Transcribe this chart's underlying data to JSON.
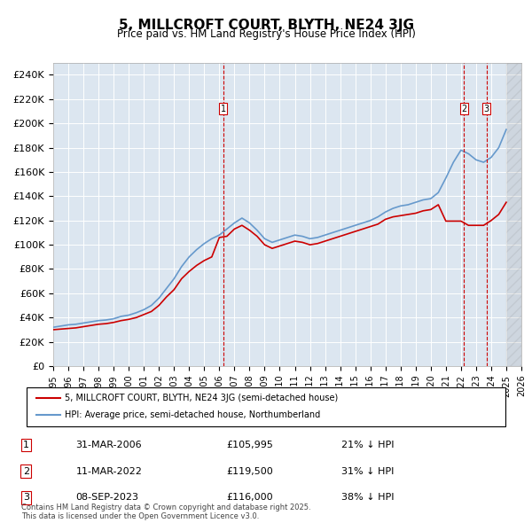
{
  "title": "5, MILLCROFT COURT, BLYTH, NE24 3JG",
  "subtitle": "Price paid vs. HM Land Registry's House Price Index (HPI)",
  "ylabel": "",
  "ylim": [
    0,
    250000
  ],
  "yticks": [
    0,
    20000,
    40000,
    60000,
    80000,
    100000,
    120000,
    140000,
    160000,
    180000,
    200000,
    220000,
    240000
  ],
  "background_color": "#dce6f0",
  "plot_bg_color": "#dce6f0",
  "red_line_color": "#cc0000",
  "blue_line_color": "#6699cc",
  "legend_entries": [
    "5, MILLCROFT COURT, BLYTH, NE24 3JG (semi-detached house)",
    "HPI: Average price, semi-detached house, Northumberland"
  ],
  "transactions": [
    {
      "label": "1",
      "date": "31-MAR-2006",
      "price": "£105,995",
      "pct": "21% ↓ HPI",
      "year": 2006.25
    },
    {
      "label": "2",
      "date": "11-MAR-2022",
      "price": "£119,500",
      "pct": "31% ↓ HPI",
      "year": 2022.2
    },
    {
      "label": "3",
      "date": "08-SEP-2023",
      "price": "£116,000",
      "pct": "38% ↓ HPI",
      "year": 2023.7
    }
  ],
  "footer": "Contains HM Land Registry data © Crown copyright and database right 2025.\nThis data is licensed under the Open Government Licence v3.0.",
  "hpi_years": [
    1995,
    1995.5,
    1996,
    1996.5,
    1997,
    1997.5,
    1998,
    1998.5,
    1999,
    1999.5,
    2000,
    2000.5,
    2001,
    2001.5,
    2002,
    2002.5,
    2003,
    2003.5,
    2004,
    2004.5,
    2005,
    2005.5,
    2006,
    2006.5,
    2007,
    2007.5,
    2008,
    2008.5,
    2009,
    2009.5,
    2010,
    2010.5,
    2011,
    2011.5,
    2012,
    2012.5,
    2013,
    2013.5,
    2014,
    2014.5,
    2015,
    2015.5,
    2016,
    2016.5,
    2017,
    2017.5,
    2018,
    2018.5,
    2019,
    2019.5,
    2020,
    2020.5,
    2021,
    2021.5,
    2022,
    2022.5,
    2023,
    2023.5,
    2024,
    2024.5,
    2025
  ],
  "hpi_values": [
    32000,
    33000,
    34000,
    34500,
    35500,
    36500,
    37500,
    38000,
    39000,
    41000,
    42000,
    44000,
    46500,
    50000,
    56000,
    64000,
    72000,
    82000,
    90000,
    96000,
    101000,
    105000,
    108000,
    113000,
    118000,
    122000,
    118000,
    112000,
    105000,
    102000,
    104000,
    106000,
    108000,
    107000,
    105000,
    106000,
    108000,
    110000,
    112000,
    114000,
    116000,
    118000,
    120000,
    123000,
    127000,
    130000,
    132000,
    133000,
    135000,
    137000,
    138000,
    143000,
    155000,
    168000,
    178000,
    175000,
    170000,
    168000,
    172000,
    180000,
    195000
  ],
  "price_years": [
    1995,
    1995.5,
    1996,
    1996.5,
    1997,
    1997.5,
    1998,
    1998.5,
    1999,
    1999.5,
    2000,
    2000.5,
    2001,
    2001.5,
    2002,
    2002.5,
    2003,
    2003.5,
    2004,
    2004.5,
    2005,
    2005.5,
    2006,
    2006.5,
    2007,
    2007.5,
    2008,
    2008.5,
    2009,
    2009.5,
    2010,
    2010.5,
    2011,
    2011.5,
    2012,
    2012.5,
    2013,
    2013.5,
    2014,
    2014.5,
    2015,
    2015.5,
    2016,
    2016.5,
    2017,
    2017.5,
    2018,
    2018.5,
    2019,
    2019.5,
    2020,
    2020.5,
    2021,
    2021.5,
    2022,
    2022.5,
    2023,
    2023.5,
    2024,
    2024.5,
    2025
  ],
  "price_values": [
    30000,
    30500,
    31000,
    31500,
    32500,
    33500,
    34500,
    35000,
    36000,
    37500,
    38500,
    40000,
    42500,
    45000,
    50000,
    57000,
    63000,
    72000,
    78000,
    83000,
    87000,
    90000,
    105995,
    107000,
    113000,
    116000,
    112000,
    107000,
    100000,
    97000,
    99000,
    101000,
    103000,
    102000,
    100000,
    101000,
    103000,
    105000,
    107000,
    109000,
    111000,
    113000,
    115000,
    117000,
    121000,
    123000,
    124000,
    125000,
    126000,
    128000,
    129000,
    133000,
    119500,
    119500,
    119500,
    116000,
    116000,
    116000,
    120000,
    125000,
    135000
  ],
  "xmin": 1995,
  "xmax": 2026,
  "xticks": [
    1995,
    1996,
    1997,
    1998,
    1999,
    2000,
    2001,
    2002,
    2003,
    2004,
    2005,
    2006,
    2007,
    2008,
    2009,
    2010,
    2011,
    2012,
    2013,
    2014,
    2015,
    2016,
    2017,
    2018,
    2019,
    2020,
    2021,
    2022,
    2023,
    2024,
    2025,
    2026
  ]
}
